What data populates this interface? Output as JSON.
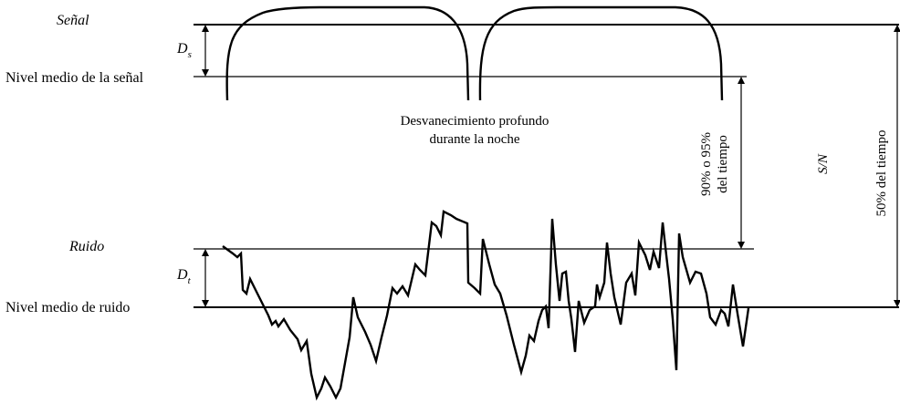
{
  "labels": {
    "signal": "Señal",
    "signal_mean": "Nivel medio de la señal",
    "noise": "Ruido",
    "noise_mean": "Nivel medio de ruido",
    "deep_fade_line1": "Desvanecimiento profundo",
    "deep_fade_line2": "durante la noche",
    "time_pct_line1": "90% o 95%",
    "time_pct_line2": "del tiempo",
    "snr": "S/N",
    "time_50": "50% del tiempo",
    "ds_letter": "D",
    "ds_sub": "s",
    "dt_letter": "D",
    "dt_sub": "t"
  }
}
